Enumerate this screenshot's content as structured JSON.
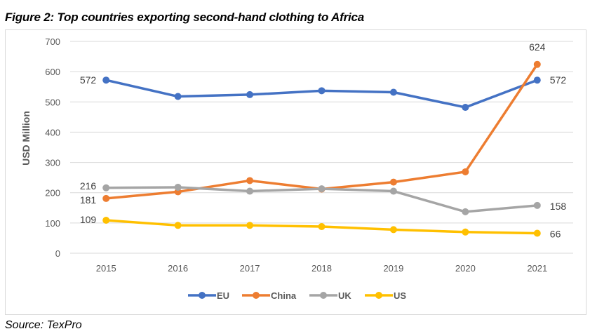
{
  "figure_title": "Figure 2: Top countries exporting second-hand clothing to Africa",
  "source": "Source: TexPro",
  "chart_data": {
    "type": "line",
    "title": "Figure 2: Top countries exporting second-hand clothing to Africa",
    "xlabel": "",
    "ylabel": "USD Million",
    "ylim": [
      0,
      700
    ],
    "yticks": [
      0,
      100,
      200,
      300,
      400,
      500,
      600,
      700
    ],
    "grid": true,
    "legend_position": "bottom",
    "categories": [
      "2015",
      "2016",
      "2017",
      "2018",
      "2019",
      "2020",
      "2021"
    ],
    "series": [
      {
        "name": "EU",
        "color": "#4472c4",
        "values": [
          572,
          518,
          524,
          537,
          532,
          482,
          572
        ],
        "labels": {
          "0": "572",
          "6": "572"
        }
      },
      {
        "name": "China",
        "color": "#ed7d31",
        "values": [
          181,
          203,
          240,
          212,
          235,
          269,
          624
        ],
        "labels": {
          "0": "181",
          "6": "624"
        }
      },
      {
        "name": "UK",
        "color": "#a5a5a5",
        "values": [
          216,
          218,
          205,
          213,
          205,
          137,
          158
        ],
        "labels": {
          "0": "216",
          "6": "158"
        }
      },
      {
        "name": "US",
        "color": "#ffc000",
        "values": [
          109,
          92,
          92,
          88,
          78,
          70,
          66
        ],
        "labels": {
          "0": "109",
          "6": "66"
        }
      }
    ]
  }
}
